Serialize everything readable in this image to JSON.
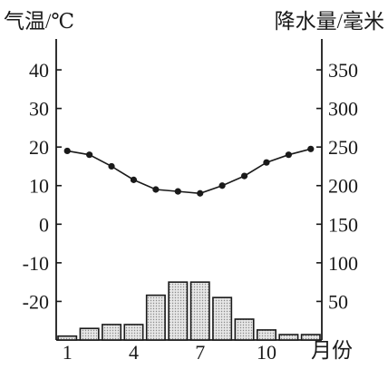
{
  "chart_data": {
    "type": "bar+line",
    "categories": [
      "1",
      "2",
      "3",
      "4",
      "5",
      "6",
      "7",
      "8",
      "9",
      "10",
      "11",
      "12"
    ],
    "x_tick_labels": [
      "1",
      "4",
      "7",
      "10"
    ],
    "x_tick_months": [
      1,
      4,
      7,
      10
    ],
    "xlabel": "月份",
    "left_axis": {
      "label": "气温/℃",
      "ylim": [
        -30,
        48
      ],
      "ticks": [
        -20,
        -10,
        0,
        10,
        20,
        30,
        40
      ],
      "tick_labels": [
        "-20",
        "-10",
        "0",
        "10",
        "20",
        "30",
        "40"
      ]
    },
    "right_axis": {
      "label": "降水量/毫米",
      "ylim": [
        0,
        390
      ],
      "ticks": [
        50,
        100,
        150,
        200,
        250,
        300,
        350
      ],
      "tick_labels": [
        "50",
        "100",
        "150",
        "200",
        "250",
        "300",
        "350"
      ]
    },
    "series": [
      {
        "kind": "line",
        "axis": "left",
        "values": [
          19,
          18,
          15,
          11.5,
          9,
          8.5,
          8,
          10,
          12.5,
          16,
          18,
          19.5
        ]
      },
      {
        "kind": "bar",
        "axis": "right",
        "values": [
          5,
          15,
          20,
          20,
          58,
          75,
          75,
          55,
          27,
          13,
          7,
          7
        ]
      }
    ],
    "colors": {
      "ink": "#1a1a1a",
      "bar_fill": "#d9d9d9"
    },
    "grid": false,
    "legend": "none"
  }
}
